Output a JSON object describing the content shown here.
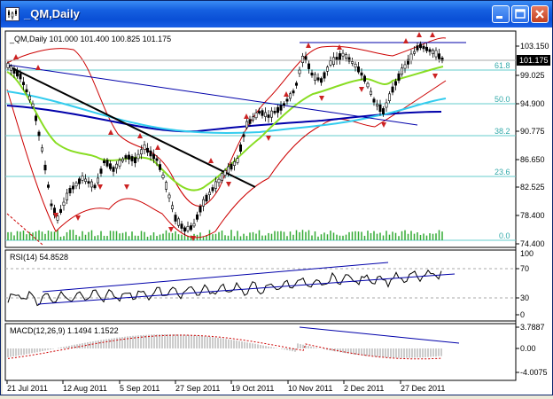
{
  "window": {
    "title": "_QM,Daily",
    "buttons": [
      "minimize",
      "maximize",
      "close"
    ],
    "icons": {
      "app": "chart-app-icon"
    }
  },
  "main_panel": {
    "info": "_QM,Daily  101.000 101.400 100.825 101.175",
    "price_label": "101.175",
    "price_axis": [
      "103.150",
      "99.025",
      "94.900",
      "90.775",
      "86.650",
      "82.525",
      "78.400",
      "74.400"
    ],
    "fib_levels": [
      "61.8",
      "50.0",
      "38.2",
      "23.6",
      "0.0"
    ]
  },
  "rsi_panel": {
    "info": "RSI(14) 54.8528",
    "axis": [
      "100",
      "70",
      "30",
      "0"
    ]
  },
  "macd_panel": {
    "info": "MACD(12,26,9) 1.1494 1.1522",
    "axis": [
      "3.7887",
      "0.00",
      "-4.0075"
    ]
  },
  "time_axis": [
    "21 Jul 2011",
    "12 Aug 2011",
    "5 Sep 2011",
    "27 Sep 2011",
    "19 Oct 2011",
    "10 Nov 2011",
    "2 Dec 2011",
    "27 Dec 2011"
  ],
  "colors": {
    "titlebar": "#0a4fd6",
    "background": "#ffffff",
    "candles": "#000000",
    "bollinger": "#cc0000",
    "ma_blue": "#0000aa",
    "ma_cyan": "#33ccee",
    "ma_green": "#88dd22",
    "fib": "#66cccc",
    "volume": "#33aa33",
    "fractal": "#cc2222",
    "macd_hist": "#999999",
    "macd_signal": "#cc0000"
  }
}
